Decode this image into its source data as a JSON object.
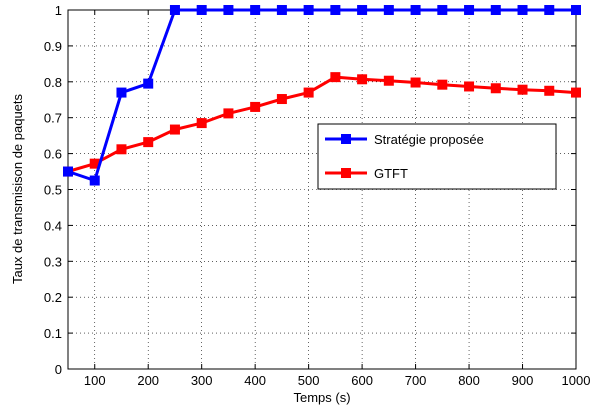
{
  "chart_data": {
    "type": "line",
    "title": "",
    "xlabel": "Temps (s)",
    "ylabel": "Taux de transmisison de paquets",
    "xlim": [
      50,
      1000
    ],
    "ylim": [
      0,
      1
    ],
    "x_ticks": [
      100,
      200,
      300,
      400,
      500,
      600,
      700,
      800,
      900,
      1000
    ],
    "y_ticks": [
      0,
      0.1,
      0.2,
      0.3,
      0.4,
      0.5,
      0.6,
      0.7,
      0.8,
      0.9,
      1
    ],
    "x_tick_labels": [
      "100",
      "200",
      "300",
      "400",
      "500",
      "600",
      "700",
      "800",
      "900",
      "1000"
    ],
    "y_tick_labels": [
      "0",
      "0.1",
      "0.2",
      "0.3",
      "0.4",
      "0.5",
      "0.6",
      "0.7",
      "0.8",
      "0.9",
      "1"
    ],
    "grid": true,
    "legend_position": "right",
    "x": [
      50,
      100,
      150,
      200,
      250,
      300,
      350,
      400,
      450,
      500,
      550,
      600,
      650,
      700,
      750,
      800,
      850,
      900,
      950,
      1000
    ],
    "series": [
      {
        "name": "Stratégie proposée",
        "color": "#0000ff",
        "marker": "square",
        "values": [
          0.55,
          0.525,
          0.77,
          0.795,
          1,
          1,
          1,
          1,
          1,
          1,
          1,
          1,
          1,
          1,
          1,
          1,
          1,
          1,
          1,
          1
        ]
      },
      {
        "name": "GTFT",
        "color": "#ff0000",
        "marker": "square",
        "values": [
          0.55,
          0.572,
          0.612,
          0.632,
          0.667,
          0.685,
          0.712,
          0.73,
          0.752,
          0.77,
          0.813,
          0.807,
          0.803,
          0.798,
          0.792,
          0.787,
          0.782,
          0.778,
          0.775,
          0.77
        ]
      }
    ]
  }
}
